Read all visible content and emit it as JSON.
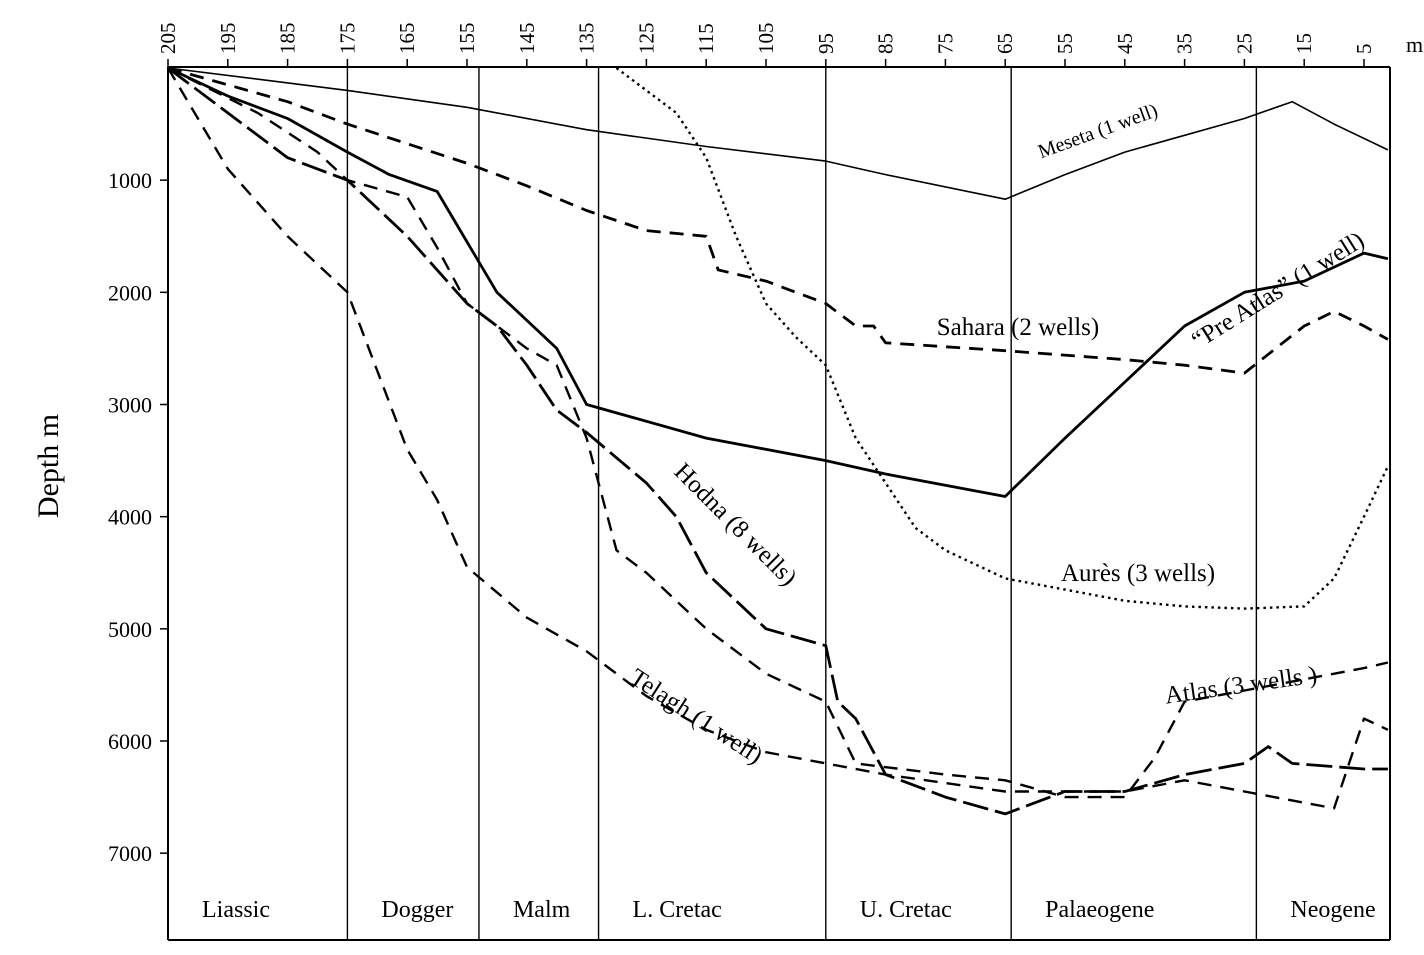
{
  "chart_data": {
    "type": "line",
    "ylabel": "Depth m",
    "x_unit_label": "m",
    "x_axis": {
      "range": [
        205,
        0
      ],
      "ticks": [
        "205",
        "195",
        "185",
        "175",
        "165",
        "155",
        "145",
        "135",
        "125",
        "115",
        "105",
        "95",
        "85",
        "75",
        "65",
        "55",
        "45",
        "35",
        "25",
        "15",
        "5"
      ]
    },
    "y_axis": {
      "range": [
        0,
        7800
      ],
      "inverted": true,
      "ticks": [
        "1000",
        "2000",
        "3000",
        "4000",
        "5000",
        "6000",
        "7000"
      ]
    },
    "periods": [
      {
        "name": "Liassic",
        "start": 205,
        "end": 175
      },
      {
        "name": "Dogger",
        "start": 175,
        "end": 153
      },
      {
        "name": "Malm",
        "start": 153,
        "end": 133
      },
      {
        "name": "L. Cretac",
        "start": 133,
        "end": 95
      },
      {
        "name": "U. Cretac",
        "start": 95,
        "end": 64
      },
      {
        "name": "Palaeogene",
        "start": 64,
        "end": 23
      },
      {
        "name": "Neogene",
        "start": 23,
        "end": 0
      }
    ],
    "series": [
      {
        "name": "Meseta (1 well)",
        "style": "solid",
        "weight": "thin",
        "points": [
          [
            205,
            0
          ],
          [
            175,
            200
          ],
          [
            155,
            350
          ],
          [
            135,
            550
          ],
          [
            115,
            700
          ],
          [
            95,
            830
          ],
          [
            85,
            950
          ],
          [
            65,
            1170
          ],
          [
            55,
            950
          ],
          [
            45,
            750
          ],
          [
            35,
            600
          ],
          [
            25,
            450
          ],
          [
            17,
            300
          ],
          [
            10,
            500
          ],
          [
            1,
            730
          ]
        ]
      },
      {
        "name": "“Pre Atlas” (1 well)",
        "style": "solid",
        "weight": "thick",
        "points": [
          [
            205,
            0
          ],
          [
            195,
            250
          ],
          [
            185,
            450
          ],
          [
            175,
            750
          ],
          [
            168,
            950
          ],
          [
            160,
            1100
          ],
          [
            155,
            1550
          ],
          [
            150,
            2000
          ],
          [
            140,
            2500
          ],
          [
            135,
            3000
          ],
          [
            115,
            3300
          ],
          [
            95,
            3500
          ],
          [
            85,
            3620
          ],
          [
            65,
            3820
          ],
          [
            55,
            3300
          ],
          [
            45,
            2800
          ],
          [
            35,
            2300
          ],
          [
            25,
            2000
          ],
          [
            15,
            1900
          ],
          [
            5,
            1650
          ],
          [
            1,
            1700
          ]
        ]
      },
      {
        "name": "Sahara (2 wells)",
        "style": "dashed",
        "weight": "thick",
        "points": [
          [
            205,
            0
          ],
          [
            185,
            300
          ],
          [
            175,
            500
          ],
          [
            155,
            850
          ],
          [
            145,
            1050
          ],
          [
            135,
            1270
          ],
          [
            125,
            1450
          ],
          [
            115,
            1500
          ],
          [
            113,
            1800
          ],
          [
            105,
            1900
          ],
          [
            95,
            2100
          ],
          [
            90,
            2300
          ],
          [
            87,
            2300
          ],
          [
            85,
            2450
          ],
          [
            65,
            2520
          ],
          [
            45,
            2600
          ],
          [
            35,
            2650
          ],
          [
            25,
            2720
          ],
          [
            15,
            2300
          ],
          [
            10,
            2170
          ],
          [
            5,
            2300
          ],
          [
            1,
            2420
          ]
        ]
      },
      {
        "name": "Hodna (8 wells)",
        "style": "long-dash",
        "weight": "thick",
        "points": [
          [
            205,
            0
          ],
          [
            195,
            400
          ],
          [
            185,
            800
          ],
          [
            175,
            1000
          ],
          [
            165,
            1500
          ],
          [
            155,
            2100
          ],
          [
            150,
            2300
          ],
          [
            145,
            2650
          ],
          [
            140,
            3050
          ],
          [
            135,
            3250
          ],
          [
            125,
            3700
          ],
          [
            120,
            4000
          ],
          [
            115,
            4500
          ],
          [
            105,
            5000
          ],
          [
            95,
            5150
          ],
          [
            93,
            5650
          ],
          [
            90,
            5800
          ],
          [
            85,
            6300
          ],
          [
            75,
            6500
          ],
          [
            65,
            6650
          ],
          [
            55,
            6450
          ],
          [
            45,
            6450
          ],
          [
            35,
            6300
          ],
          [
            25,
            6200
          ],
          [
            21,
            6050
          ],
          [
            17,
            6200
          ],
          [
            5,
            6250
          ],
          [
            1,
            6250
          ]
        ]
      },
      {
        "name": "Atlas (3 wells )",
        "style": "dashed",
        "weight": "medium",
        "points": [
          [
            205,
            0
          ],
          [
            190,
            400
          ],
          [
            180,
            750
          ],
          [
            175,
            1000
          ],
          [
            165,
            1150
          ],
          [
            160,
            1600
          ],
          [
            155,
            2100
          ],
          [
            145,
            2500
          ],
          [
            140,
            2650
          ],
          [
            135,
            3300
          ],
          [
            130,
            4300
          ],
          [
            125,
            4500
          ],
          [
            115,
            5000
          ],
          [
            105,
            5400
          ],
          [
            95,
            5650
          ],
          [
            90,
            6200
          ],
          [
            75,
            6300
          ],
          [
            65,
            6350
          ],
          [
            55,
            6500
          ],
          [
            45,
            6500
          ],
          [
            40,
            6150
          ],
          [
            35,
            5650
          ],
          [
            25,
            5550
          ],
          [
            15,
            5450
          ],
          [
            5,
            5350
          ],
          [
            1,
            5300
          ]
        ]
      },
      {
        "name": "Telagh (1 well)",
        "style": "dashed",
        "weight": "medium",
        "points": [
          [
            205,
            0
          ],
          [
            195,
            900
          ],
          [
            185,
            1500
          ],
          [
            175,
            2000
          ],
          [
            165,
            3400
          ],
          [
            160,
            3850
          ],
          [
            155,
            4450
          ],
          [
            145,
            4900
          ],
          [
            135,
            5200
          ],
          [
            125,
            5600
          ],
          [
            115,
            5900
          ],
          [
            105,
            6100
          ],
          [
            95,
            6200
          ],
          [
            85,
            6300
          ],
          [
            65,
            6450
          ],
          [
            55,
            6450
          ],
          [
            45,
            6450
          ],
          [
            35,
            6350
          ],
          [
            25,
            6450
          ],
          [
            15,
            6550
          ],
          [
            10,
            6600
          ],
          [
            5,
            5800
          ],
          [
            1,
            5900
          ]
        ]
      },
      {
        "name": "Aurès (3 wells)",
        "style": "dotted",
        "weight": "medium",
        "points": [
          [
            130,
            0
          ],
          [
            120,
            400
          ],
          [
            115,
            800
          ],
          [
            110,
            1500
          ],
          [
            105,
            2100
          ],
          [
            100,
            2400
          ],
          [
            95,
            2650
          ],
          [
            90,
            3300
          ],
          [
            85,
            3700
          ],
          [
            80,
            4100
          ],
          [
            75,
            4300
          ],
          [
            65,
            4550
          ],
          [
            55,
            4650
          ],
          [
            45,
            4750
          ],
          [
            35,
            4800
          ],
          [
            25,
            4820
          ],
          [
            15,
            4800
          ],
          [
            10,
            4550
          ],
          [
            5,
            4000
          ],
          [
            1,
            3550
          ]
        ]
      }
    ]
  }
}
